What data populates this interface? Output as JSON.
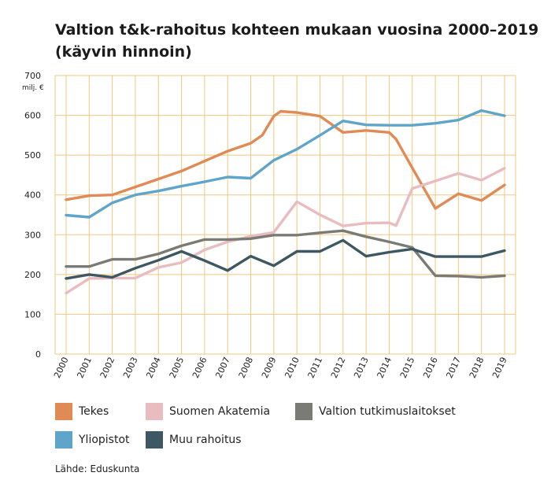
{
  "title": {
    "line1": "Valtion t&k-rahoitus kohteen mukaan vuosina 2000–2019",
    "line2": "(käyvin hinnoin)"
  },
  "source": "Lähde: Eduskunta",
  "chart_data": {
    "type": "line",
    "ylabel": "milj. €",
    "xlabel": "",
    "ylim": [
      0,
      700
    ],
    "yticks": [
      0,
      100,
      200,
      300,
      400,
      500,
      600,
      700
    ],
    "x": [
      "2000",
      "2001",
      "2002",
      "2003",
      "2004",
      "2005",
      "2006",
      "2007",
      "2008",
      "2009",
      "2010",
      "2011",
      "2012",
      "2013",
      "2014",
      "2015",
      "2016",
      "2017",
      "2018",
      "2019"
    ],
    "grid": true,
    "legend_position": "bottom",
    "series": [
      {
        "name": "Tekes",
        "color": "#e08a55",
        "points": [
          [
            0,
            388
          ],
          [
            1,
            398
          ],
          [
            2,
            400
          ],
          [
            3,
            420
          ],
          [
            4,
            440
          ],
          [
            5,
            460
          ],
          [
            6,
            485
          ],
          [
            7,
            510
          ],
          [
            8,
            530
          ],
          [
            8.5,
            550
          ],
          [
            9,
            598
          ],
          [
            9.3,
            610
          ],
          [
            10,
            607
          ],
          [
            11,
            598
          ],
          [
            12,
            557
          ],
          [
            13,
            562
          ],
          [
            14,
            557
          ],
          [
            14.3,
            540
          ],
          [
            15,
            468
          ],
          [
            16,
            366
          ],
          [
            17,
            403
          ],
          [
            18,
            386
          ],
          [
            19,
            425
          ]
        ]
      },
      {
        "name": "Yliopistot",
        "color": "#5fa5c9",
        "points": [
          [
            0,
            349
          ],
          [
            1,
            344
          ],
          [
            2,
            380
          ],
          [
            3,
            400
          ],
          [
            4,
            410
          ],
          [
            5,
            422
          ],
          [
            6,
            433
          ],
          [
            7,
            445
          ],
          [
            8,
            442
          ],
          [
            9,
            487
          ],
          [
            10,
            515
          ],
          [
            11,
            550
          ],
          [
            12,
            586
          ],
          [
            13,
            576
          ],
          [
            14,
            575
          ],
          [
            15,
            575
          ],
          [
            16,
            580
          ],
          [
            17,
            588
          ],
          [
            18,
            612
          ],
          [
            19,
            599
          ]
        ]
      },
      {
        "name": "Suomen Akatemia",
        "color": "#e9bcc0",
        "points": [
          [
            0,
            153
          ],
          [
            1,
            190
          ],
          [
            2,
            191
          ],
          [
            3,
            191
          ],
          [
            4,
            218
          ],
          [
            5,
            230
          ],
          [
            6,
            262
          ],
          [
            7,
            282
          ],
          [
            8,
            296
          ],
          [
            9,
            306
          ],
          [
            10,
            383
          ],
          [
            11,
            350
          ],
          [
            12,
            322
          ],
          [
            13,
            329
          ],
          [
            14,
            330
          ],
          [
            14.3,
            323
          ],
          [
            15,
            416
          ],
          [
            16,
            435
          ],
          [
            17,
            454
          ],
          [
            18,
            437
          ],
          [
            19,
            467
          ]
        ]
      },
      {
        "name": "Valtion tutkimuslaitokset",
        "color": "#7b7b76",
        "points": [
          [
            0,
            220
          ],
          [
            1,
            220
          ],
          [
            2,
            238
          ],
          [
            3,
            238
          ],
          [
            4,
            252
          ],
          [
            5,
            272
          ],
          [
            6,
            288
          ],
          [
            7,
            288
          ],
          [
            8,
            290
          ],
          [
            9,
            299
          ],
          [
            10,
            299
          ],
          [
            11,
            305
          ],
          [
            12,
            310
          ],
          [
            13,
            295
          ],
          [
            14,
            282
          ],
          [
            15,
            268
          ],
          [
            16,
            197
          ],
          [
            17,
            196
          ],
          [
            18,
            193
          ],
          [
            19,
            197
          ]
        ]
      },
      {
        "name": "Muu rahoitus",
        "color": "#3d5763",
        "points": [
          [
            0,
            190
          ],
          [
            1,
            200
          ],
          [
            2,
            193
          ],
          [
            3,
            216
          ],
          [
            4,
            236
          ],
          [
            5,
            258
          ],
          [
            6,
            235
          ],
          [
            7,
            210
          ],
          [
            8,
            246
          ],
          [
            9,
            222
          ],
          [
            10,
            258
          ],
          [
            11,
            258
          ],
          [
            12,
            286
          ],
          [
            13,
            246
          ],
          [
            14,
            256
          ],
          [
            15,
            264
          ],
          [
            16,
            245
          ],
          [
            17,
            245
          ],
          [
            18,
            245
          ],
          [
            19,
            260
          ]
        ]
      }
    ]
  }
}
